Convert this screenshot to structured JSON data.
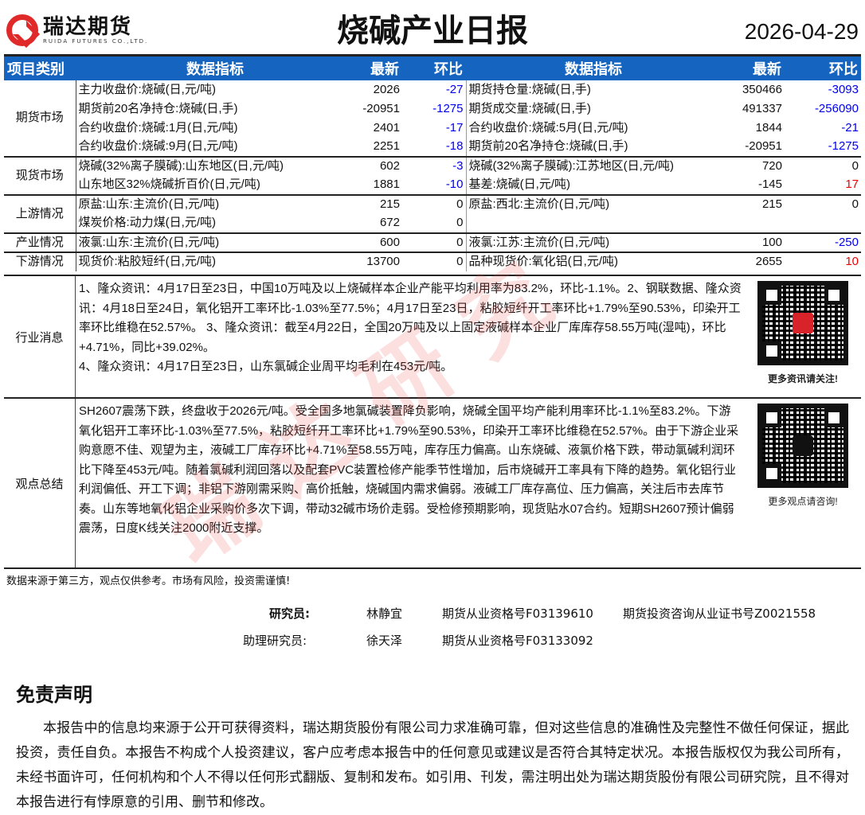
{
  "header": {
    "logo_cn": "瑞达期货",
    "logo_en": "RUIDA FUTURES CO.,LTD.",
    "title": "烧碱产业日报",
    "date": "2026-04-29"
  },
  "table": {
    "columns": [
      "项目类别",
      "数据指标",
      "最新",
      "环比",
      "数据指标",
      "最新",
      "环比"
    ],
    "groups": [
      {
        "category": "期货市场",
        "rows": [
          [
            "主力收盘价:烧碱(日,元/吨)",
            "2026",
            "-27",
            "期货持仓量:烧碱(日,手)",
            "350466",
            "-3093"
          ],
          [
            "期货前20名净持仓:烧碱(日,手)",
            "-20951",
            "-1275",
            "期货成交量:烧碱(日,手)",
            "491337",
            "-256090"
          ],
          [
            "合约收盘价:烧碱:1月(日,元/吨)",
            "2401",
            "-17",
            "合约收盘价:烧碱:5月(日,元/吨)",
            "1844",
            "-21"
          ],
          [
            "合约收盘价:烧碱:9月(日,元/吨)",
            "2251",
            "-18",
            "期货前20名净持仓:烧碱(日,手)",
            "-20951",
            "-1275"
          ]
        ]
      },
      {
        "category": "现货市场",
        "rows": [
          [
            "烧碱(32%离子膜碱):山东地区(日,元/吨)",
            "602",
            "-3",
            "烧碱(32%离子膜碱):江苏地区(日,元/吨)",
            "720",
            "0"
          ],
          [
            "山东地区32%烧碱折百价(日,元/吨)",
            "1881",
            "-10",
            "基差:烧碱(日,元/吨)",
            "-145",
            "17"
          ]
        ]
      },
      {
        "category": "上游情况",
        "rows": [
          [
            "原盐:山东:主流价(日,元/吨)",
            "215",
            "0",
            "原盐:西北:主流价(日,元/吨)",
            "215",
            "0"
          ],
          [
            "煤炭价格:动力煤(日,元/吨)",
            "672",
            "0",
            "",
            "",
            ""
          ]
        ]
      },
      {
        "category": "产业情况",
        "rows": [
          [
            "液氯:山东:主流价(日,元/吨)",
            "600",
            "0",
            "液氯:江苏:主流价(日,元/吨)",
            "100",
            "-250"
          ]
        ]
      },
      {
        "category": "下游情况",
        "rows": [
          [
            "现货价:粘胶短纤(日,元/吨)",
            "13700",
            "0",
            "品种现货价:氧化铝(日,元/吨)",
            "2655",
            "10"
          ]
        ]
      }
    ]
  },
  "colors": {
    "header_bg": "#1565c0",
    "negative": "#0000ee",
    "positive": "#ee0000"
  },
  "news": {
    "category": "行业消息",
    "text": "1、隆众资讯：4月17日至23日，中国10万吨及以上烧碱样本企业产能平均利用率为83.2%，环比-1.1%。2、钢联数据、隆众资讯：4月18日至24日，氧化铝开工率环比-1.03%至77.5%；4月17日至23日，粘胶短纤开工率环比+1.79%至90.53%，印染开工率环比维稳在52.57%。 3、隆众资讯：截至4月22日，全国20万吨及以上固定液碱样本企业厂库库存58.55万吨(湿吨)，环比+4.71%，同比+39.02%。",
    "text2": "4、隆众资讯：4月17日至23日，山东氯碱企业周平均毛利在453元/吨。",
    "qr_caption": "更多资讯请关注!"
  },
  "summary": {
    "category": "观点总结",
    "text": "SH2607震荡下跌，终盘收于2026元/吨。受全国多地氯碱装置降负影响，烧碱全国平均产能利用率环比-1.1%至83.2%。下游氧化铝开工率环比-1.03%至77.5%，粘胶短纤开工率环比+1.79%至90.53%，印染开工率环比维稳在52.57%。由于下游企业采购意愿不佳、观望为主，液碱工厂库存环比+4.71%至58.55万吨，库存压力偏高。山东烧碱、液氯价格下跌，带动氯碱利润环比下降至453元/吨。随着氯碱利润回落以及配套PVC装置检修产能季节性增加，后市烧碱开工率具有下降的趋势。氧化铝行业利润偏低、开工下调；非铝下游刚需采购、高价抵触，烧碱国内需求偏弱。液碱工厂库存高位、压力偏高，关注后市去库节奏。山东等地氧化铝企业采购价多次下调，带动32碱市场价走弱。受检修预期影响，现货贴水07合约。短期SH2607预计偏弱震荡，日度K线关注2000附近支撑。",
    "qr_caption": "更多观点请咨询!"
  },
  "footnote": "数据来源于第三方，观点仅供参考。市场有风险，投资需谨慎!",
  "researchers": {
    "label1": "研究员:",
    "name1": "林静宜",
    "cert1": "期货从业资格号F03139610",
    "cert1b": "期货投资咨询从业证书号Z0021558",
    "label2": "助理研究员:",
    "name2": "徐天泽",
    "cert2": "期货从业资格号F03133092"
  },
  "disclaimer": {
    "title": "免责声明",
    "text": "本报告中的信息均来源于公开可获得资料，瑞达期货股份有限公司力求准确可靠，但对这些信息的准确性及完整性不做任何保证，据此投资，责任自负。本报告不构成个人投资建议，客户应考虑本报告中的任何意见或建议是否符合其特定状况。本报告版权仅为我公司所有，未经书面许可，任何机构和个人不得以任何形式翻版、复制和发布。如引用、刊发，需注明出处为瑞达期货股份有限公司研究院，且不得对本报告进行有悖原意的引用、删节和修改。"
  },
  "watermark": "瑞达研究"
}
